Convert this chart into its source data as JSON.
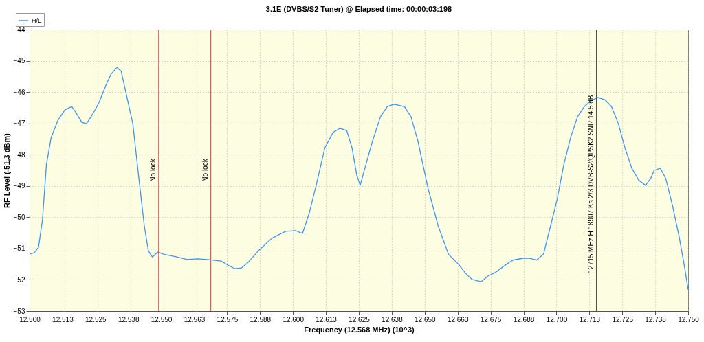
{
  "chart_data": {
    "type": "line",
    "title": "3.1E (DVBS/S2 Tuner) @ Elapsed time: 00:00:03:198",
    "xlabel": "Frequency (12.568 MHz) (10^3)",
    "ylabel": "RF Level (-51,3 dBm)",
    "xlim": [
      12.5,
      12.75
    ],
    "ylim": [
      -53,
      -44
    ],
    "xticks": [
      {
        "value": 12.5,
        "label": "12.500"
      },
      {
        "value": 12.5125,
        "label": "12.513"
      },
      {
        "value": 12.525,
        "label": "12.525"
      },
      {
        "value": 12.5375,
        "label": "12.538"
      },
      {
        "value": 12.55,
        "label": "12.550"
      },
      {
        "value": 12.5625,
        "label": "12.563"
      },
      {
        "value": 12.575,
        "label": "12.575"
      },
      {
        "value": 12.5875,
        "label": "12.588"
      },
      {
        "value": 12.6,
        "label": "12.600"
      },
      {
        "value": 12.6125,
        "label": "12.613"
      },
      {
        "value": 12.625,
        "label": "12.625"
      },
      {
        "value": 12.6375,
        "label": "12.638"
      },
      {
        "value": 12.65,
        "label": "12.650"
      },
      {
        "value": 12.6625,
        "label": "12.663"
      },
      {
        "value": 12.675,
        "label": "12.675"
      },
      {
        "value": 12.6875,
        "label": "12.688"
      },
      {
        "value": 12.7,
        "label": "12.700"
      },
      {
        "value": 12.7125,
        "label": "12.713"
      },
      {
        "value": 12.725,
        "label": "12.725"
      },
      {
        "value": 12.7375,
        "label": "12.738"
      },
      {
        "value": 12.75,
        "label": "12.750"
      }
    ],
    "yticks": [
      -53,
      -52,
      -51,
      -50,
      -49,
      -48,
      -47,
      -46,
      -45,
      -44
    ],
    "grid": true,
    "legend": "top left",
    "x": [
      12.5,
      12.5018,
      12.5034,
      12.5049,
      12.5064,
      12.5082,
      12.5108,
      12.5134,
      12.516,
      12.5178,
      12.5198,
      12.5216,
      12.5237,
      12.5263,
      12.5289,
      12.5309,
      12.5332,
      12.5348,
      12.5366,
      12.5392,
      12.5418,
      12.5436,
      12.5451,
      12.5466,
      12.5487,
      12.5508,
      12.5559,
      12.5598,
      12.5637,
      12.5675,
      12.5727,
      12.5753,
      12.5778,
      12.5804,
      12.583,
      12.5869,
      12.592,
      12.5972,
      12.601,
      12.6036,
      12.6062,
      12.6088,
      12.6121,
      12.6152,
      12.6178,
      12.6204,
      12.6224,
      12.6242,
      12.6255,
      12.6273,
      12.6302,
      12.6332,
      12.6358,
      12.6384,
      12.6423,
      12.6448,
      12.6474,
      12.6513,
      12.6552,
      12.659,
      12.6629,
      12.6655,
      12.668,
      12.6714,
      12.674,
      12.6771,
      12.6809,
      12.6835,
      12.6874,
      12.6899,
      12.6925,
      12.6951,
      12.6977,
      12.7003,
      12.7028,
      12.7054,
      12.708,
      12.7106,
      12.7131,
      12.7157,
      12.7183,
      12.7209,
      12.7235,
      12.726,
      12.7286,
      12.7312,
      12.7338,
      12.7358,
      12.7371,
      12.7394,
      12.7415,
      12.7441,
      12.7466,
      12.7487,
      12.75
    ],
    "series": [
      {
        "name": "H/L",
        "color": "#3d94f0",
        "values": [
          -51.18,
          -51.13,
          -50.96,
          -50.08,
          -48.32,
          -47.45,
          -46.9,
          -46.57,
          -46.46,
          -46.68,
          -46.96,
          -47.01,
          -46.74,
          -46.35,
          -45.8,
          -45.43,
          -45.21,
          -45.34,
          -46.02,
          -47.01,
          -48.98,
          -50.3,
          -51.07,
          -51.27,
          -51.11,
          -51.18,
          -51.27,
          -51.35,
          -51.33,
          -51.35,
          -51.4,
          -51.53,
          -51.64,
          -51.62,
          -51.44,
          -51.07,
          -50.67,
          -50.45,
          -50.43,
          -50.52,
          -49.86,
          -48.98,
          -47.78,
          -47.29,
          -47.16,
          -47.23,
          -47.78,
          -48.65,
          -48.98,
          -48.43,
          -47.56,
          -46.79,
          -46.46,
          -46.39,
          -46.46,
          -46.79,
          -47.56,
          -49.09,
          -50.3,
          -51.18,
          -51.51,
          -51.79,
          -51.99,
          -52.06,
          -51.88,
          -51.75,
          -51.51,
          -51.37,
          -51.31,
          -51.31,
          -51.37,
          -51.18,
          -50.3,
          -49.42,
          -48.32,
          -47.45,
          -46.79,
          -46.46,
          -46.28,
          -46.17,
          -46.24,
          -46.46,
          -47.01,
          -47.78,
          -48.43,
          -48.81,
          -48.98,
          -48.76,
          -48.5,
          -48.43,
          -48.76,
          -49.64,
          -50.63,
          -51.62,
          -52.32
        ]
      }
    ],
    "ref_lines": [
      {
        "axis": "x",
        "value": 12.549,
        "label": "No lock",
        "color": "#e03c3c"
      },
      {
        "axis": "x",
        "value": 12.5688,
        "label": "No lock",
        "color": "#e03c3c"
      },
      {
        "axis": "x",
        "value": 12.7152,
        "label": "12715 MHz H 18907 Ks 2/3 DVB-S2/QPSK2 SNR 14.5 dB",
        "color": "#333333"
      }
    ]
  }
}
